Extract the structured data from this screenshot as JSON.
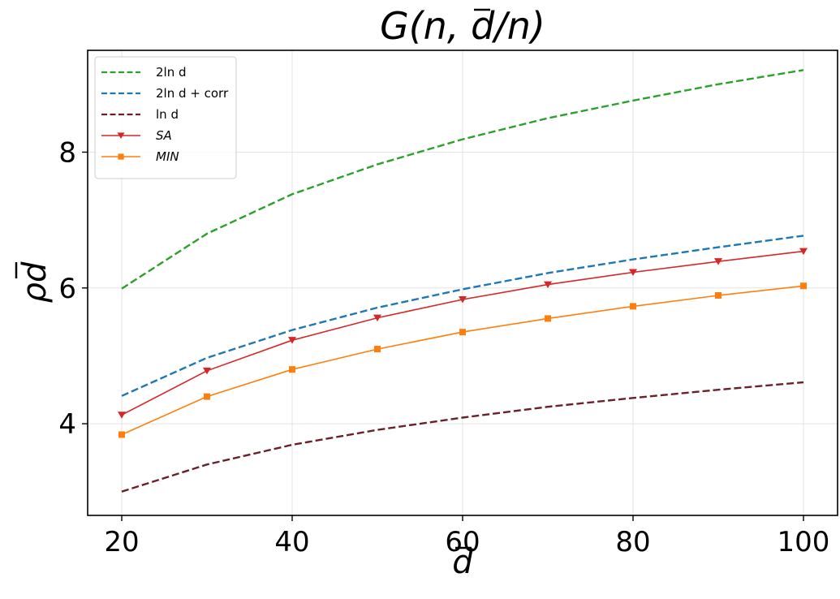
{
  "chart_data": {
    "type": "line",
    "title": "G(n, d/n)",
    "xlabel": "d",
    "ylabel": "ρd",
    "xlim": [
      16,
      104
    ],
    "ylim": [
      2.65,
      9.5
    ],
    "x_ticks": [
      20,
      40,
      60,
      80,
      100
    ],
    "y_ticks": [
      4,
      6,
      8
    ],
    "grid": true,
    "legend_position": "top-left",
    "series": [
      {
        "name": "2ln d",
        "color": "#2ca02c",
        "style": "dashed",
        "marker": "none",
        "x": [
          20,
          30,
          40,
          50,
          60,
          70,
          80,
          90,
          100
        ],
        "values": [
          5.99,
          6.8,
          7.38,
          7.82,
          8.19,
          8.5,
          8.76,
          9.0,
          9.21
        ]
      },
      {
        "name": "2ln d + corr",
        "color": "#1f77b4",
        "style": "dashed",
        "marker": "none",
        "x": [
          20,
          30,
          40,
          50,
          60,
          70,
          80,
          90,
          100
        ],
        "values": [
          4.41,
          4.97,
          5.38,
          5.71,
          5.98,
          6.22,
          6.42,
          6.6,
          6.77
        ]
      },
      {
        "name": "ln d",
        "color": "#6b1f2a",
        "style": "dashed",
        "marker": "none",
        "x": [
          20,
          30,
          40,
          50,
          60,
          70,
          80,
          90,
          100
        ],
        "values": [
          3.0,
          3.4,
          3.69,
          3.91,
          4.09,
          4.25,
          4.38,
          4.5,
          4.61
        ]
      },
      {
        "name": "SA",
        "color": "#d62728",
        "style": "solid",
        "marker": "triangle-down",
        "x": [
          20,
          30,
          40,
          50,
          60,
          70,
          80,
          90,
          100
        ],
        "values": [
          4.13,
          4.78,
          5.23,
          5.56,
          5.83,
          6.05,
          6.23,
          6.39,
          6.54
        ]
      },
      {
        "name": "MIN",
        "color": "#ff7f0e",
        "style": "solid",
        "marker": "square",
        "x": [
          20,
          30,
          40,
          50,
          60,
          70,
          80,
          90,
          100
        ],
        "values": [
          3.84,
          4.4,
          4.8,
          5.1,
          5.35,
          5.55,
          5.73,
          5.89,
          6.03
        ]
      }
    ]
  }
}
